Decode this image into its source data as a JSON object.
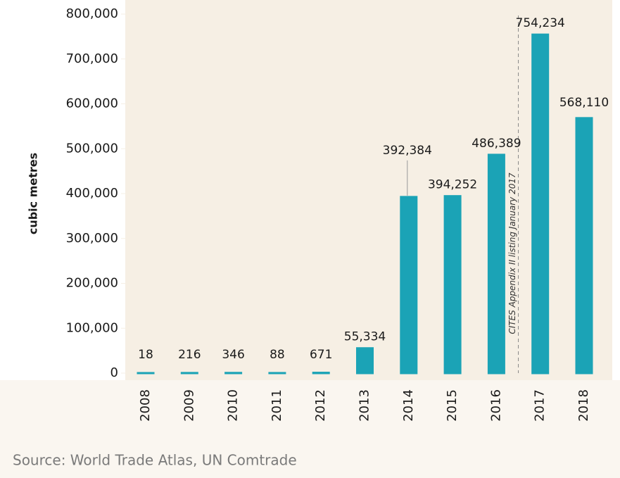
{
  "chart_data": {
    "type": "bar",
    "y_label": "cubic metres",
    "annotation": "CITES Appendix II listing January 2017",
    "source": "Source: World Trade Atlas, UN Comtrade",
    "categories": [
      "2008",
      "2009",
      "2010",
      "2011",
      "2012",
      "2013",
      "2014",
      "2015",
      "2016",
      "2017",
      "2018"
    ],
    "values": [
      18,
      216,
      346,
      88,
      671,
      55334,
      392384,
      394252,
      486389,
      754234,
      568110
    ],
    "value_labels": [
      "18",
      "216",
      "346",
      "88",
      "671",
      "55,334",
      "392,384",
      "394,252",
      "486,389",
      "754,234",
      "568,110"
    ],
    "color": "#1ba3b6",
    "ylim": [
      0,
      800000
    ],
    "yticks": [
      0,
      {
        "value": 100000,
        "label": "100,000"
      },
      {
        "value": 200000,
        "label": "200,000"
      },
      {
        "value": 300000,
        "label": "300,000"
      },
      {
        "value": 400000,
        "label": "400,000"
      },
      {
        "value": 500000,
        "label": "500,000"
      },
      {
        "value": 600000,
        "label": "600,000"
      },
      {
        "value": 700000,
        "label": "700,000"
      },
      {
        "value": 800000,
        "label": "800,000"
      }
    ],
    "grid": false
  }
}
